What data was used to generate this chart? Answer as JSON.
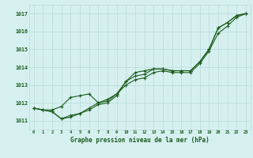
{
  "title": "Graphe pression niveau de la mer (hPa)",
  "bg_color": "#d6f0f0",
  "grid_color": "#b8dada",
  "line_color": "#1a5c1a",
  "x_values": [
    0,
    1,
    2,
    3,
    4,
    5,
    6,
    7,
    8,
    9,
    10,
    11,
    12,
    13,
    14,
    15,
    16,
    17,
    18,
    19,
    20,
    21,
    22,
    23
  ],
  "line1": [
    1011.7,
    1011.6,
    1011.6,
    1011.8,
    1012.3,
    1012.4,
    1012.5,
    1012.0,
    1012.1,
    1012.5,
    1013.2,
    1013.7,
    1013.8,
    1013.9,
    1013.9,
    1013.8,
    1013.8,
    1013.8,
    1014.3,
    1015.0,
    1016.2,
    1016.5,
    1016.9,
    1017.0
  ],
  "line2": [
    1011.7,
    1011.6,
    1011.5,
    1011.1,
    1011.3,
    1011.4,
    1011.6,
    1011.9,
    1012.0,
    1012.4,
    1013.2,
    1013.5,
    1013.6,
    1013.9,
    1013.9,
    1013.8,
    1013.8,
    1013.8,
    1014.3,
    1015.0,
    1016.2,
    1016.5,
    1016.9,
    1017.0
  ],
  "line3": [
    1011.7,
    1011.6,
    1011.5,
    1011.1,
    1011.2,
    1011.4,
    1011.7,
    1012.0,
    1012.2,
    1012.5,
    1013.0,
    1013.3,
    1013.4,
    1013.7,
    1013.8,
    1013.7,
    1013.7,
    1013.7,
    1014.2,
    1014.9,
    1015.9,
    1016.3,
    1016.8,
    1017.0
  ],
  "ylim": [
    1010.5,
    1017.5
  ],
  "yticks": [
    1011,
    1012,
    1013,
    1014,
    1015,
    1016,
    1017
  ],
  "xlim": [
    -0.5,
    23.5
  ],
  "xticks": [
    0,
    1,
    2,
    3,
    4,
    5,
    6,
    7,
    8,
    9,
    10,
    11,
    12,
    13,
    14,
    15,
    16,
    17,
    18,
    19,
    20,
    21,
    22,
    23
  ]
}
